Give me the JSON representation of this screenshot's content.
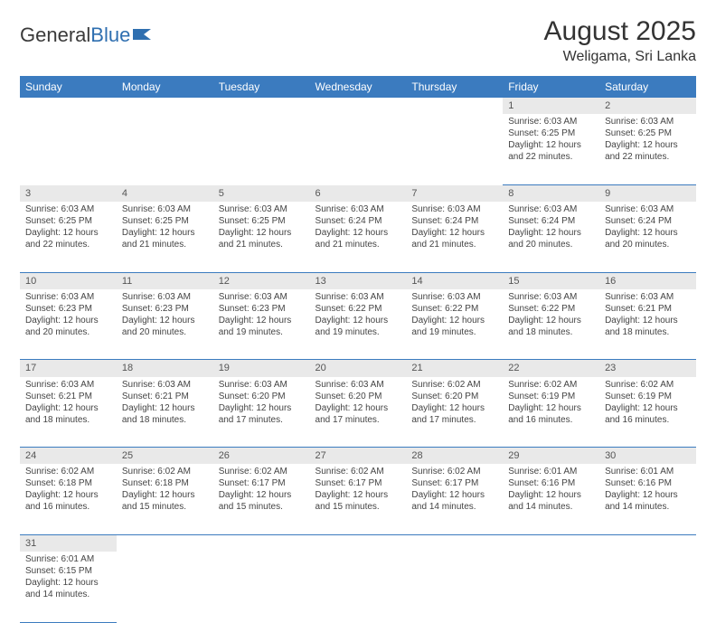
{
  "logo": {
    "text1": "General",
    "text2": "Blue"
  },
  "title": "August 2025",
  "location": "Weligama, Sri Lanka",
  "colors": {
    "header_bg": "#3b7bbf",
    "header_fg": "#ffffff",
    "daynum_bg": "#e9e9e9",
    "border": "#3b7bbf",
    "text": "#333333"
  },
  "weekdays": [
    "Sunday",
    "Monday",
    "Tuesday",
    "Wednesday",
    "Thursday",
    "Friday",
    "Saturday"
  ],
  "weeks": [
    [
      null,
      null,
      null,
      null,
      null,
      {
        "n": "1",
        "sr": "Sunrise: 6:03 AM",
        "ss": "Sunset: 6:25 PM",
        "d1": "Daylight: 12 hours",
        "d2": "and 22 minutes."
      },
      {
        "n": "2",
        "sr": "Sunrise: 6:03 AM",
        "ss": "Sunset: 6:25 PM",
        "d1": "Daylight: 12 hours",
        "d2": "and 22 minutes."
      }
    ],
    [
      {
        "n": "3",
        "sr": "Sunrise: 6:03 AM",
        "ss": "Sunset: 6:25 PM",
        "d1": "Daylight: 12 hours",
        "d2": "and 22 minutes."
      },
      {
        "n": "4",
        "sr": "Sunrise: 6:03 AM",
        "ss": "Sunset: 6:25 PM",
        "d1": "Daylight: 12 hours",
        "d2": "and 21 minutes."
      },
      {
        "n": "5",
        "sr": "Sunrise: 6:03 AM",
        "ss": "Sunset: 6:25 PM",
        "d1": "Daylight: 12 hours",
        "d2": "and 21 minutes."
      },
      {
        "n": "6",
        "sr": "Sunrise: 6:03 AM",
        "ss": "Sunset: 6:24 PM",
        "d1": "Daylight: 12 hours",
        "d2": "and 21 minutes."
      },
      {
        "n": "7",
        "sr": "Sunrise: 6:03 AM",
        "ss": "Sunset: 6:24 PM",
        "d1": "Daylight: 12 hours",
        "d2": "and 21 minutes."
      },
      {
        "n": "8",
        "sr": "Sunrise: 6:03 AM",
        "ss": "Sunset: 6:24 PM",
        "d1": "Daylight: 12 hours",
        "d2": "and 20 minutes."
      },
      {
        "n": "9",
        "sr": "Sunrise: 6:03 AM",
        "ss": "Sunset: 6:24 PM",
        "d1": "Daylight: 12 hours",
        "d2": "and 20 minutes."
      }
    ],
    [
      {
        "n": "10",
        "sr": "Sunrise: 6:03 AM",
        "ss": "Sunset: 6:23 PM",
        "d1": "Daylight: 12 hours",
        "d2": "and 20 minutes."
      },
      {
        "n": "11",
        "sr": "Sunrise: 6:03 AM",
        "ss": "Sunset: 6:23 PM",
        "d1": "Daylight: 12 hours",
        "d2": "and 20 minutes."
      },
      {
        "n": "12",
        "sr": "Sunrise: 6:03 AM",
        "ss": "Sunset: 6:23 PM",
        "d1": "Daylight: 12 hours",
        "d2": "and 19 minutes."
      },
      {
        "n": "13",
        "sr": "Sunrise: 6:03 AM",
        "ss": "Sunset: 6:22 PM",
        "d1": "Daylight: 12 hours",
        "d2": "and 19 minutes."
      },
      {
        "n": "14",
        "sr": "Sunrise: 6:03 AM",
        "ss": "Sunset: 6:22 PM",
        "d1": "Daylight: 12 hours",
        "d2": "and 19 minutes."
      },
      {
        "n": "15",
        "sr": "Sunrise: 6:03 AM",
        "ss": "Sunset: 6:22 PM",
        "d1": "Daylight: 12 hours",
        "d2": "and 18 minutes."
      },
      {
        "n": "16",
        "sr": "Sunrise: 6:03 AM",
        "ss": "Sunset: 6:21 PM",
        "d1": "Daylight: 12 hours",
        "d2": "and 18 minutes."
      }
    ],
    [
      {
        "n": "17",
        "sr": "Sunrise: 6:03 AM",
        "ss": "Sunset: 6:21 PM",
        "d1": "Daylight: 12 hours",
        "d2": "and 18 minutes."
      },
      {
        "n": "18",
        "sr": "Sunrise: 6:03 AM",
        "ss": "Sunset: 6:21 PM",
        "d1": "Daylight: 12 hours",
        "d2": "and 18 minutes."
      },
      {
        "n": "19",
        "sr": "Sunrise: 6:03 AM",
        "ss": "Sunset: 6:20 PM",
        "d1": "Daylight: 12 hours",
        "d2": "and 17 minutes."
      },
      {
        "n": "20",
        "sr": "Sunrise: 6:03 AM",
        "ss": "Sunset: 6:20 PM",
        "d1": "Daylight: 12 hours",
        "d2": "and 17 minutes."
      },
      {
        "n": "21",
        "sr": "Sunrise: 6:02 AM",
        "ss": "Sunset: 6:20 PM",
        "d1": "Daylight: 12 hours",
        "d2": "and 17 minutes."
      },
      {
        "n": "22",
        "sr": "Sunrise: 6:02 AM",
        "ss": "Sunset: 6:19 PM",
        "d1": "Daylight: 12 hours",
        "d2": "and 16 minutes."
      },
      {
        "n": "23",
        "sr": "Sunrise: 6:02 AM",
        "ss": "Sunset: 6:19 PM",
        "d1": "Daylight: 12 hours",
        "d2": "and 16 minutes."
      }
    ],
    [
      {
        "n": "24",
        "sr": "Sunrise: 6:02 AM",
        "ss": "Sunset: 6:18 PM",
        "d1": "Daylight: 12 hours",
        "d2": "and 16 minutes."
      },
      {
        "n": "25",
        "sr": "Sunrise: 6:02 AM",
        "ss": "Sunset: 6:18 PM",
        "d1": "Daylight: 12 hours",
        "d2": "and 15 minutes."
      },
      {
        "n": "26",
        "sr": "Sunrise: 6:02 AM",
        "ss": "Sunset: 6:17 PM",
        "d1": "Daylight: 12 hours",
        "d2": "and 15 minutes."
      },
      {
        "n": "27",
        "sr": "Sunrise: 6:02 AM",
        "ss": "Sunset: 6:17 PM",
        "d1": "Daylight: 12 hours",
        "d2": "and 15 minutes."
      },
      {
        "n": "28",
        "sr": "Sunrise: 6:02 AM",
        "ss": "Sunset: 6:17 PM",
        "d1": "Daylight: 12 hours",
        "d2": "and 14 minutes."
      },
      {
        "n": "29",
        "sr": "Sunrise: 6:01 AM",
        "ss": "Sunset: 6:16 PM",
        "d1": "Daylight: 12 hours",
        "d2": "and 14 minutes."
      },
      {
        "n": "30",
        "sr": "Sunrise: 6:01 AM",
        "ss": "Sunset: 6:16 PM",
        "d1": "Daylight: 12 hours",
        "d2": "and 14 minutes."
      }
    ],
    [
      {
        "n": "31",
        "sr": "Sunrise: 6:01 AM",
        "ss": "Sunset: 6:15 PM",
        "d1": "Daylight: 12 hours",
        "d2": "and 14 minutes."
      },
      null,
      null,
      null,
      null,
      null,
      null
    ]
  ]
}
